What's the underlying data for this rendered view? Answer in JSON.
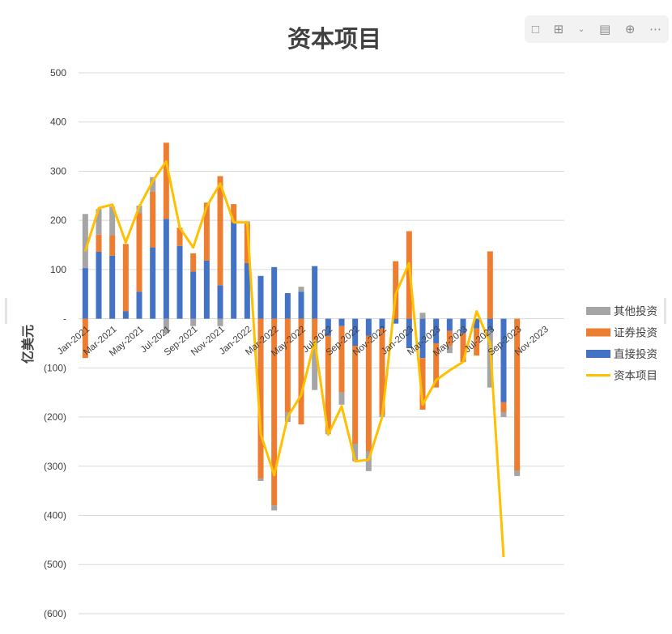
{
  "chart_data": {
    "type": "bar",
    "stacked": true,
    "title": "资本项目",
    "ylabel": "亿美元",
    "xlabel": "",
    "ylim": [
      -600,
      500
    ],
    "yticks": [
      500,
      400,
      300,
      200,
      100,
      0,
      -100,
      -200,
      -300,
      -400,
      -500,
      -600
    ],
    "ytick_labels": [
      "500",
      "400",
      "300",
      "200",
      "100",
      "-",
      "(100)",
      "(200)",
      "(300)",
      "(400)",
      "(500)",
      "(600)"
    ],
    "grid": true,
    "legend_position": "right",
    "categories": [
      "Jan-2021",
      "Feb-2021",
      "Mar-2021",
      "Apr-2021",
      "May-2021",
      "Jun-2021",
      "Jul-2021",
      "Aug-2021",
      "Sep-2021",
      "Oct-2021",
      "Nov-2021",
      "Dec-2021",
      "Jan-2022",
      "Feb-2022",
      "Mar-2022",
      "Apr-2022",
      "May-2022",
      "Jun-2022",
      "Jul-2022",
      "Aug-2022",
      "Sep-2022",
      "Oct-2022",
      "Nov-2022",
      "Dec-2022",
      "Jan-2023",
      "Feb-2023",
      "Mar-2023",
      "Apr-2023",
      "May-2023",
      "Jun-2023",
      "Jul-2023",
      "Aug-2023",
      "Sep-2023",
      "Oct-2023",
      "Nov-2023",
      "Dec-2023"
    ],
    "xtick_labels": [
      "Jan-2021",
      "Mar-2021",
      "May-2021",
      "Jul-2021",
      "Sep-2021",
      "Nov-2021",
      "Jan-2022",
      "Mar-2022",
      "May-2022",
      "Jul-2022",
      "Sep-2022",
      "Nov-2022",
      "Jan-2023",
      "Mar-2023",
      "May-2023",
      "Jul-2023",
      "Sep-2023",
      "Nov-2023"
    ],
    "series": [
      {
        "name": "直接投资",
        "color": "#4472c4",
        "values": [
          103,
          136,
          128,
          15,
          55,
          145,
          203,
          148,
          96,
          118,
          68,
          196,
          113,
          87,
          105,
          52,
          55,
          107,
          -35,
          -15,
          -55,
          -35,
          -20,
          -10,
          -60,
          -80,
          -50,
          -25,
          -30,
          -20,
          -25,
          -170,
          null,
          null,
          null,
          null
        ]
      },
      {
        "name": "证券投资",
        "color": "#ed7d31",
        "values": [
          -80,
          35,
          42,
          137,
          160,
          113,
          155,
          37,
          37,
          118,
          222,
          37,
          80,
          -325,
          -380,
          -190,
          -215,
          -45,
          -195,
          -135,
          -200,
          -235,
          -175,
          117,
          178,
          -105,
          -90,
          -30,
          -58,
          -55,
          137,
          -20,
          -310,
          null,
          null,
          null
        ]
      },
      {
        "name": "其他投资",
        "color": "#a5a5a5",
        "values": [
          110,
          52,
          58,
          0,
          15,
          30,
          -30,
          0,
          -15,
          0,
          -15,
          0,
          5,
          -5,
          -10,
          -20,
          10,
          -100,
          -5,
          -25,
          -35,
          -40,
          -5,
          0,
          0,
          12,
          0,
          -15,
          0,
          0,
          -115,
          -10,
          -10,
          null,
          null,
          null
        ]
      },
      {
        "name": "资本项目",
        "color": "#ffc000",
        "type": "line",
        "values": [
          137,
          225,
          232,
          155,
          228,
          280,
          320,
          185,
          145,
          228,
          275,
          196,
          196,
          -235,
          -318,
          -200,
          -155,
          -45,
          -236,
          -178,
          -290,
          -287,
          -200,
          50,
          113,
          -175,
          -125,
          -105,
          -88,
          15,
          -50,
          -485,
          null,
          null,
          null,
          null
        ]
      }
    ]
  },
  "toolbar_icons": [
    "comment-icon",
    "align-icon",
    "chevron-down-icon",
    "layout-icon",
    "download-icon",
    "more-icon"
  ]
}
